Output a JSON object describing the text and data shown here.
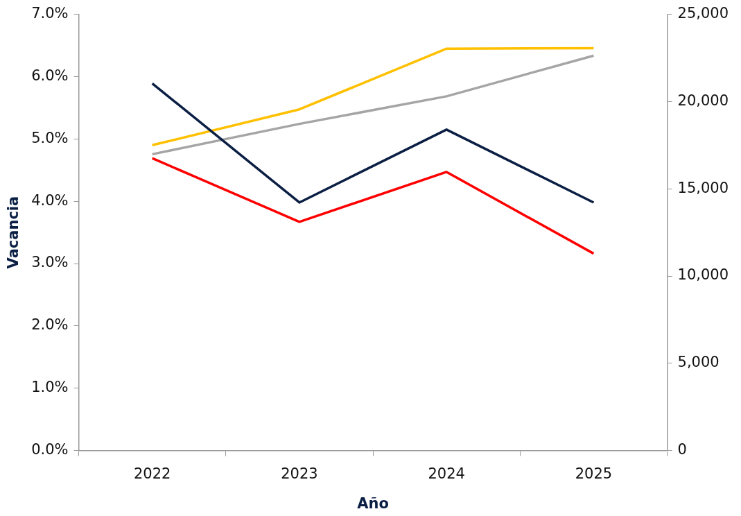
{
  "chart_data": {
    "type": "line",
    "xlabel": "Año",
    "ylabel": "Vacancia",
    "categories": [
      "2022",
      "2023",
      "2024",
      "2025"
    ],
    "ylim": [
      0,
      7
    ],
    "yticks": [
      {
        "value": 0,
        "label": "0.0%"
      },
      {
        "value": 1,
        "label": "1.0%"
      },
      {
        "value": 2,
        "label": "2.0%"
      },
      {
        "value": 3,
        "label": "3.0%"
      },
      {
        "value": 4,
        "label": "4.0%"
      },
      {
        "value": 5,
        "label": "5.0%"
      },
      {
        "value": 6,
        "label": "6.0%"
      },
      {
        "value": 7,
        "label": "7.0%"
      }
    ],
    "y2lim": [
      0,
      25000
    ],
    "y2ticks": [
      0,
      {
        "value": 5000,
        "label": "5,000"
      },
      {
        "value": 10000,
        "label": "10,000"
      },
      {
        "value": 15000,
        "label": "15,000"
      },
      {
        "value": 20000,
        "label": "20,000"
      },
      {
        "value": 25000,
        "label": "25,000"
      }
    ],
    "marker": "none",
    "line_style": "solid",
    "series": [
      {
        "color": "#0b1f44",
        "values": [
          5.89,
          3.98,
          5.15,
          3.98
        ]
      },
      {
        "color": "#ff0000",
        "values": [
          4.69,
          3.67,
          4.47,
          3.16
        ]
      },
      {
        "color": "#ffc000",
        "axis": "y2",
        "values": [
          17500,
          19550,
          23030,
          23060
        ]
      },
      {
        "color": "#a5a5a5",
        "axis": "y2",
        "values": [
          16980,
          18720,
          20300,
          22630
        ]
      }
    ]
  }
}
